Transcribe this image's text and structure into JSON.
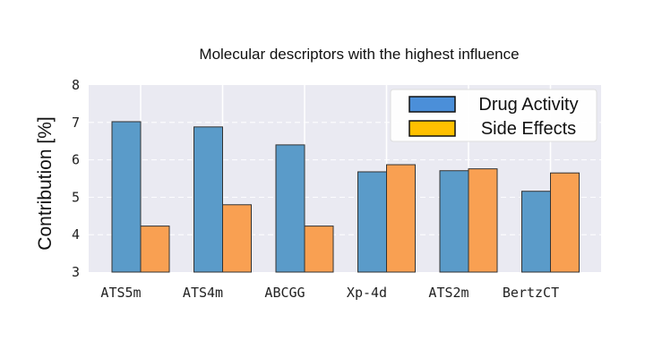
{
  "chart_data": {
    "type": "bar",
    "title": "Molecular descriptors with the highest influence",
    "xlabel": "",
    "ylabel": "Contribution [%]",
    "categories": [
      "ATS5m",
      "ATS4m",
      "ABCGG",
      "Xp-4d",
      "ATS2m",
      "BertzCT"
    ],
    "series": [
      {
        "name": "Drug Activity",
        "values": [
          7.02,
          6.88,
          6.4,
          5.68,
          5.71,
          5.16
        ]
      },
      {
        "name": "Side Effects",
        "values": [
          4.23,
          4.8,
          4.23,
          5.87,
          5.76,
          5.65
        ]
      }
    ],
    "ylim": [
      3,
      8
    ],
    "yticks": [
      "3",
      "4",
      "5",
      "6",
      "7",
      "8"
    ],
    "grid": true,
    "legend_position": "top-right"
  },
  "colors": {
    "plot_background": "#EAEAF2",
    "grid": "#ffffff",
    "series": [
      "#5A9BC9",
      "#F9A052"
    ],
    "legend_swatches": [
      "#4B8FD9",
      "#FFC000"
    ],
    "bar_edge": "#333333"
  }
}
